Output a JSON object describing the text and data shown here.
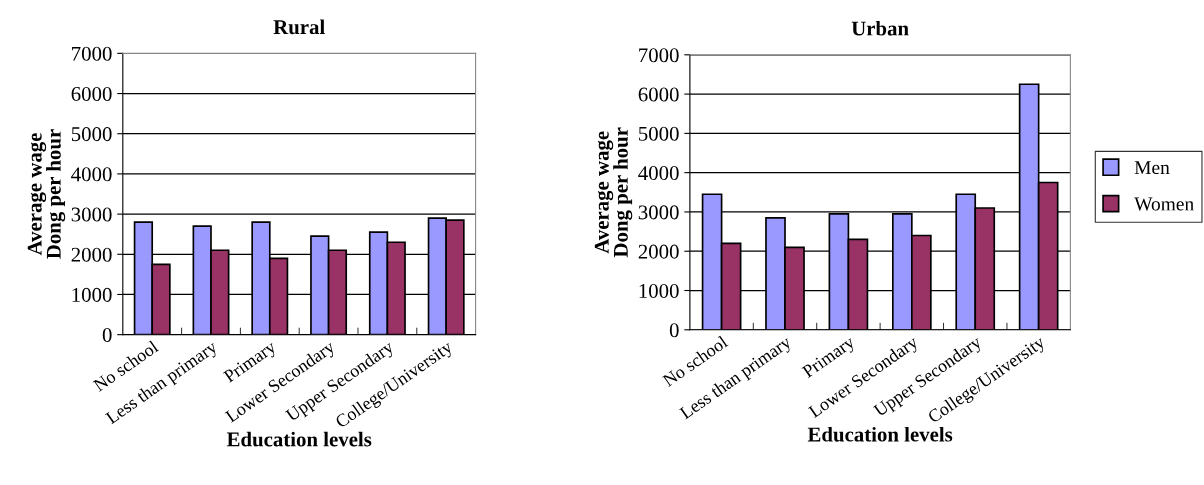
{
  "chart_data": [
    {
      "type": "bar",
      "title": "Rural",
      "xlabel": "Education levels",
      "ylabel": "Average wage\nDong per hour",
      "categories": [
        "No school",
        "Less than primary",
        "Primary",
        "Lower Secondary",
        "Upper Secondary",
        "College/University"
      ],
      "series": [
        {
          "color": "#9999ff",
          "values": [
            2800,
            2700,
            2800,
            2450,
            2550,
            2900
          ]
        },
        {
          "color": "#993366",
          "values": [
            1750,
            2100,
            1900,
            2100,
            2300,
            2850
          ]
        }
      ],
      "ylim": [
        0,
        7000
      ],
      "yticks": [
        0,
        1000,
        2000,
        3000,
        4000,
        5000,
        6000,
        7000
      ],
      "grid": "y"
    },
    {
      "type": "bar",
      "title": "Urban",
      "xlabel": "Education levels",
      "ylabel": "Average wage\nDong per hour",
      "categories": [
        "No school",
        "Less than primary",
        "Primary",
        "Lower Secondary",
        "Upper Secondary",
        "College/University"
      ],
      "series": [
        {
          "name": "Men",
          "color": "#9999ff",
          "values": [
            3450,
            2850,
            2950,
            2950,
            3450,
            6250
          ]
        },
        {
          "name": "Women",
          "color": "#993366",
          "values": [
            2200,
            2100,
            2300,
            2400,
            3100,
            3750
          ]
        }
      ],
      "ylim": [
        0,
        7000
      ],
      "yticks": [
        0,
        1000,
        2000,
        3000,
        4000,
        5000,
        6000,
        7000
      ],
      "grid": "y",
      "legend": "right"
    }
  ]
}
